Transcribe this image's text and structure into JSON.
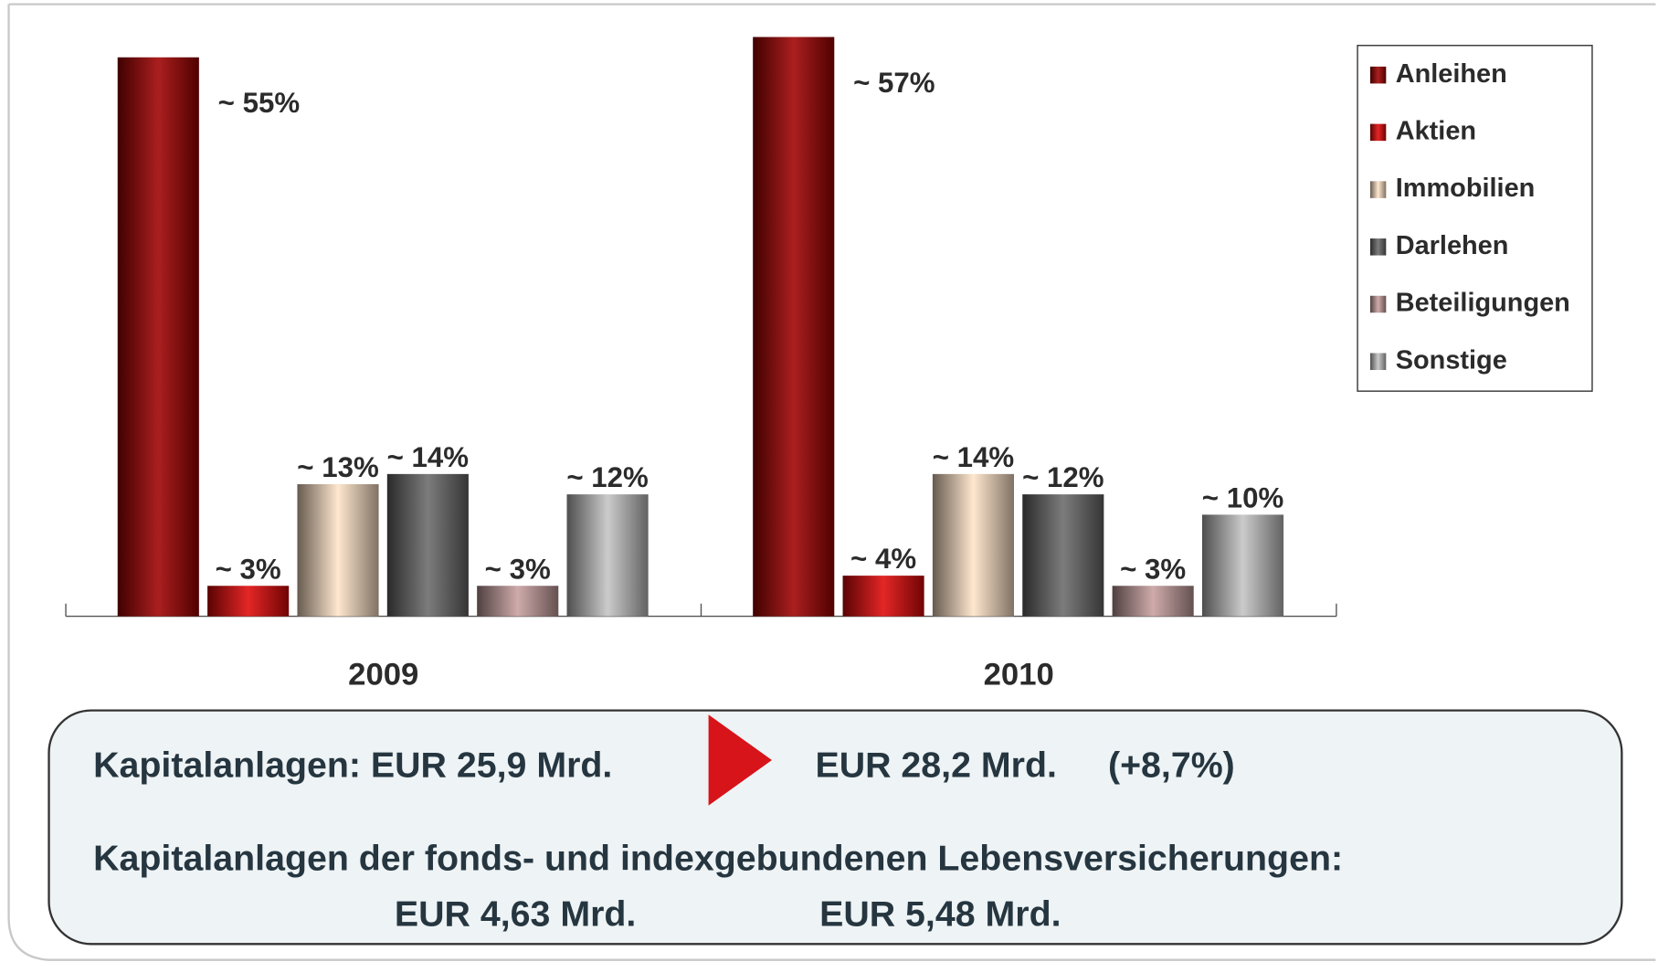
{
  "chart_data": {
    "type": "bar",
    "categories": [
      "2009",
      "2010"
    ],
    "series": [
      {
        "name": "Anleihen",
        "color": "#a00000",
        "values": [
          55,
          57
        ],
        "value_labels": [
          "~ 55%",
          "~ 57%"
        ]
      },
      {
        "name": "Aktien",
        "color": "#e00808",
        "values": [
          3,
          4
        ],
        "value_labels": [
          "~ 3%",
          "~ 4%"
        ]
      },
      {
        "name": "Immobilien",
        "color": "#ffe4c8",
        "values": [
          13,
          14
        ],
        "value_labels": [
          "~ 13%",
          "~ 14%"
        ]
      },
      {
        "name": "Darlehen",
        "color": "#6a6a6a",
        "values": [
          14,
          12
        ],
        "value_labels": [
          "~ 14%",
          "~ 12%"
        ]
      },
      {
        "name": "Beteiligungen",
        "color": "#c8a0a0",
        "values": [
          3,
          3
        ],
        "value_labels": [
          "~ 3%",
          "~ 3%"
        ]
      },
      {
        "name": "Sonstige",
        "color": "#c4c4c4",
        "values": [
          12,
          10
        ],
        "value_labels": [
          "~ 12%",
          "~ 10%"
        ]
      }
    ]
  },
  "info_box": {
    "line1_left": "Kapitalanlagen: EUR 25,9 Mrd.",
    "line1_right": "EUR 28,2 Mrd.",
    "line1_change": "(+8,7%)",
    "line2": "Kapitalanlagen der fonds- und indexgebundenen Lebensversicherungen:",
    "line3_left": "EUR 4,63 Mrd.",
    "line3_right": "EUR 5,48 Mrd."
  }
}
